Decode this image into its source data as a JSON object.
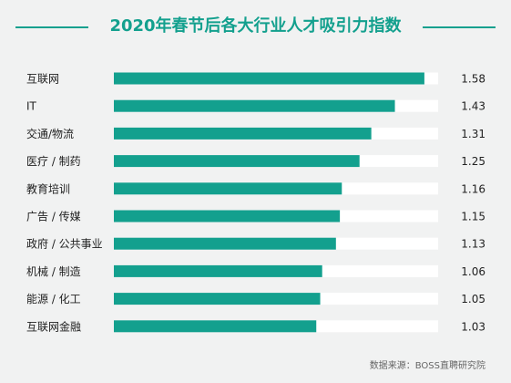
{
  "chart_data": {
    "type": "bar",
    "orientation": "horizontal",
    "title": "2020年春节后各大行业人才吸引力指数",
    "categories": [
      "互联网",
      "IT",
      "交通/物流",
      "医疗 / 制药",
      "教育培训",
      "广告 / 传媒",
      "政府 / 公共事业",
      "机械 / 制造",
      "能源 / 化工",
      "互联网金融"
    ],
    "values": [
      1.58,
      1.43,
      1.31,
      1.25,
      1.16,
      1.15,
      1.13,
      1.06,
      1.05,
      1.03
    ],
    "value_labels": [
      "1.58",
      "1.43",
      "1.31",
      "1.25",
      "1.16",
      "1.15",
      "1.13",
      "1.06",
      "1.05",
      "1.03"
    ],
    "xlim": [
      0,
      1.65
    ],
    "grid": false,
    "colors": {
      "bar": "#13a08e",
      "track": "#ffffff",
      "title": "#13a08e"
    }
  },
  "source": "数据来源：BOSS直聘研究院"
}
